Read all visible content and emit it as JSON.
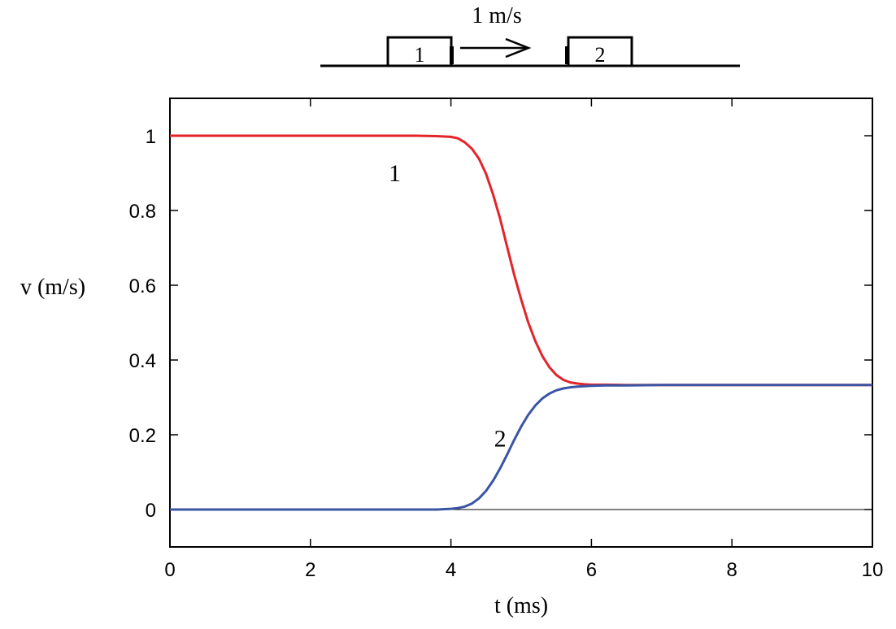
{
  "chart_data": {
    "type": "line",
    "title": "",
    "xlabel": "t (ms)",
    "ylabel": "v (m/s)",
    "xlim": [
      0,
      10
    ],
    "ylim": [
      -0.1,
      1.1
    ],
    "xticks": [
      0,
      2,
      4,
      6,
      8,
      10
    ],
    "yticks": [
      0,
      0.2,
      0.4,
      0.6,
      0.8,
      1
    ],
    "grid": false,
    "legend": "none",
    "series": [
      {
        "label": "1",
        "color": "#e3242b",
        "x": [
          0,
          1,
          2,
          3,
          3.5,
          3.8,
          4.0,
          4.1,
          4.2,
          4.3,
          4.4,
          4.5,
          4.6,
          4.7,
          4.8,
          4.9,
          5.0,
          5.1,
          5.2,
          5.3,
          5.4,
          5.5,
          5.6,
          5.7,
          5.8,
          5.9,
          6.0,
          6.2,
          6.5,
          7,
          8,
          9,
          10
        ],
        "y": [
          1.0,
          1.0,
          1.0,
          1.0,
          1.0,
          0.999,
          0.997,
          0.993,
          0.982,
          0.965,
          0.938,
          0.898,
          0.843,
          0.778,
          0.703,
          0.628,
          0.562,
          0.501,
          0.451,
          0.411,
          0.381,
          0.36,
          0.347,
          0.34,
          0.337,
          0.335,
          0.334,
          0.334,
          0.333,
          0.333,
          0.333,
          0.333,
          0.333
        ]
      },
      {
        "label": "2",
        "color": "#3a55a4",
        "x": [
          0,
          1,
          2,
          3,
          3.5,
          3.8,
          4.0,
          4.1,
          4.2,
          4.3,
          4.4,
          4.5,
          4.6,
          4.7,
          4.8,
          4.9,
          5.0,
          5.1,
          5.2,
          5.3,
          5.4,
          5.5,
          5.6,
          5.7,
          5.8,
          5.9,
          6.0,
          6.2,
          6.5,
          7,
          8,
          9,
          10
        ],
        "y": [
          0.0,
          0.0,
          0.0,
          0.0,
          0.0,
          0.0,
          0.002,
          0.004,
          0.008,
          0.016,
          0.03,
          0.05,
          0.077,
          0.11,
          0.147,
          0.186,
          0.222,
          0.253,
          0.278,
          0.297,
          0.31,
          0.319,
          0.324,
          0.327,
          0.329,
          0.33,
          0.331,
          0.332,
          0.332,
          0.333,
          0.333,
          0.333,
          0.333
        ]
      }
    ],
    "annotations": {
      "curve1_label": "1",
      "curve2_label": "2",
      "velocity_label": "1 m/s",
      "block1_label": "1",
      "block2_label": "2"
    }
  }
}
